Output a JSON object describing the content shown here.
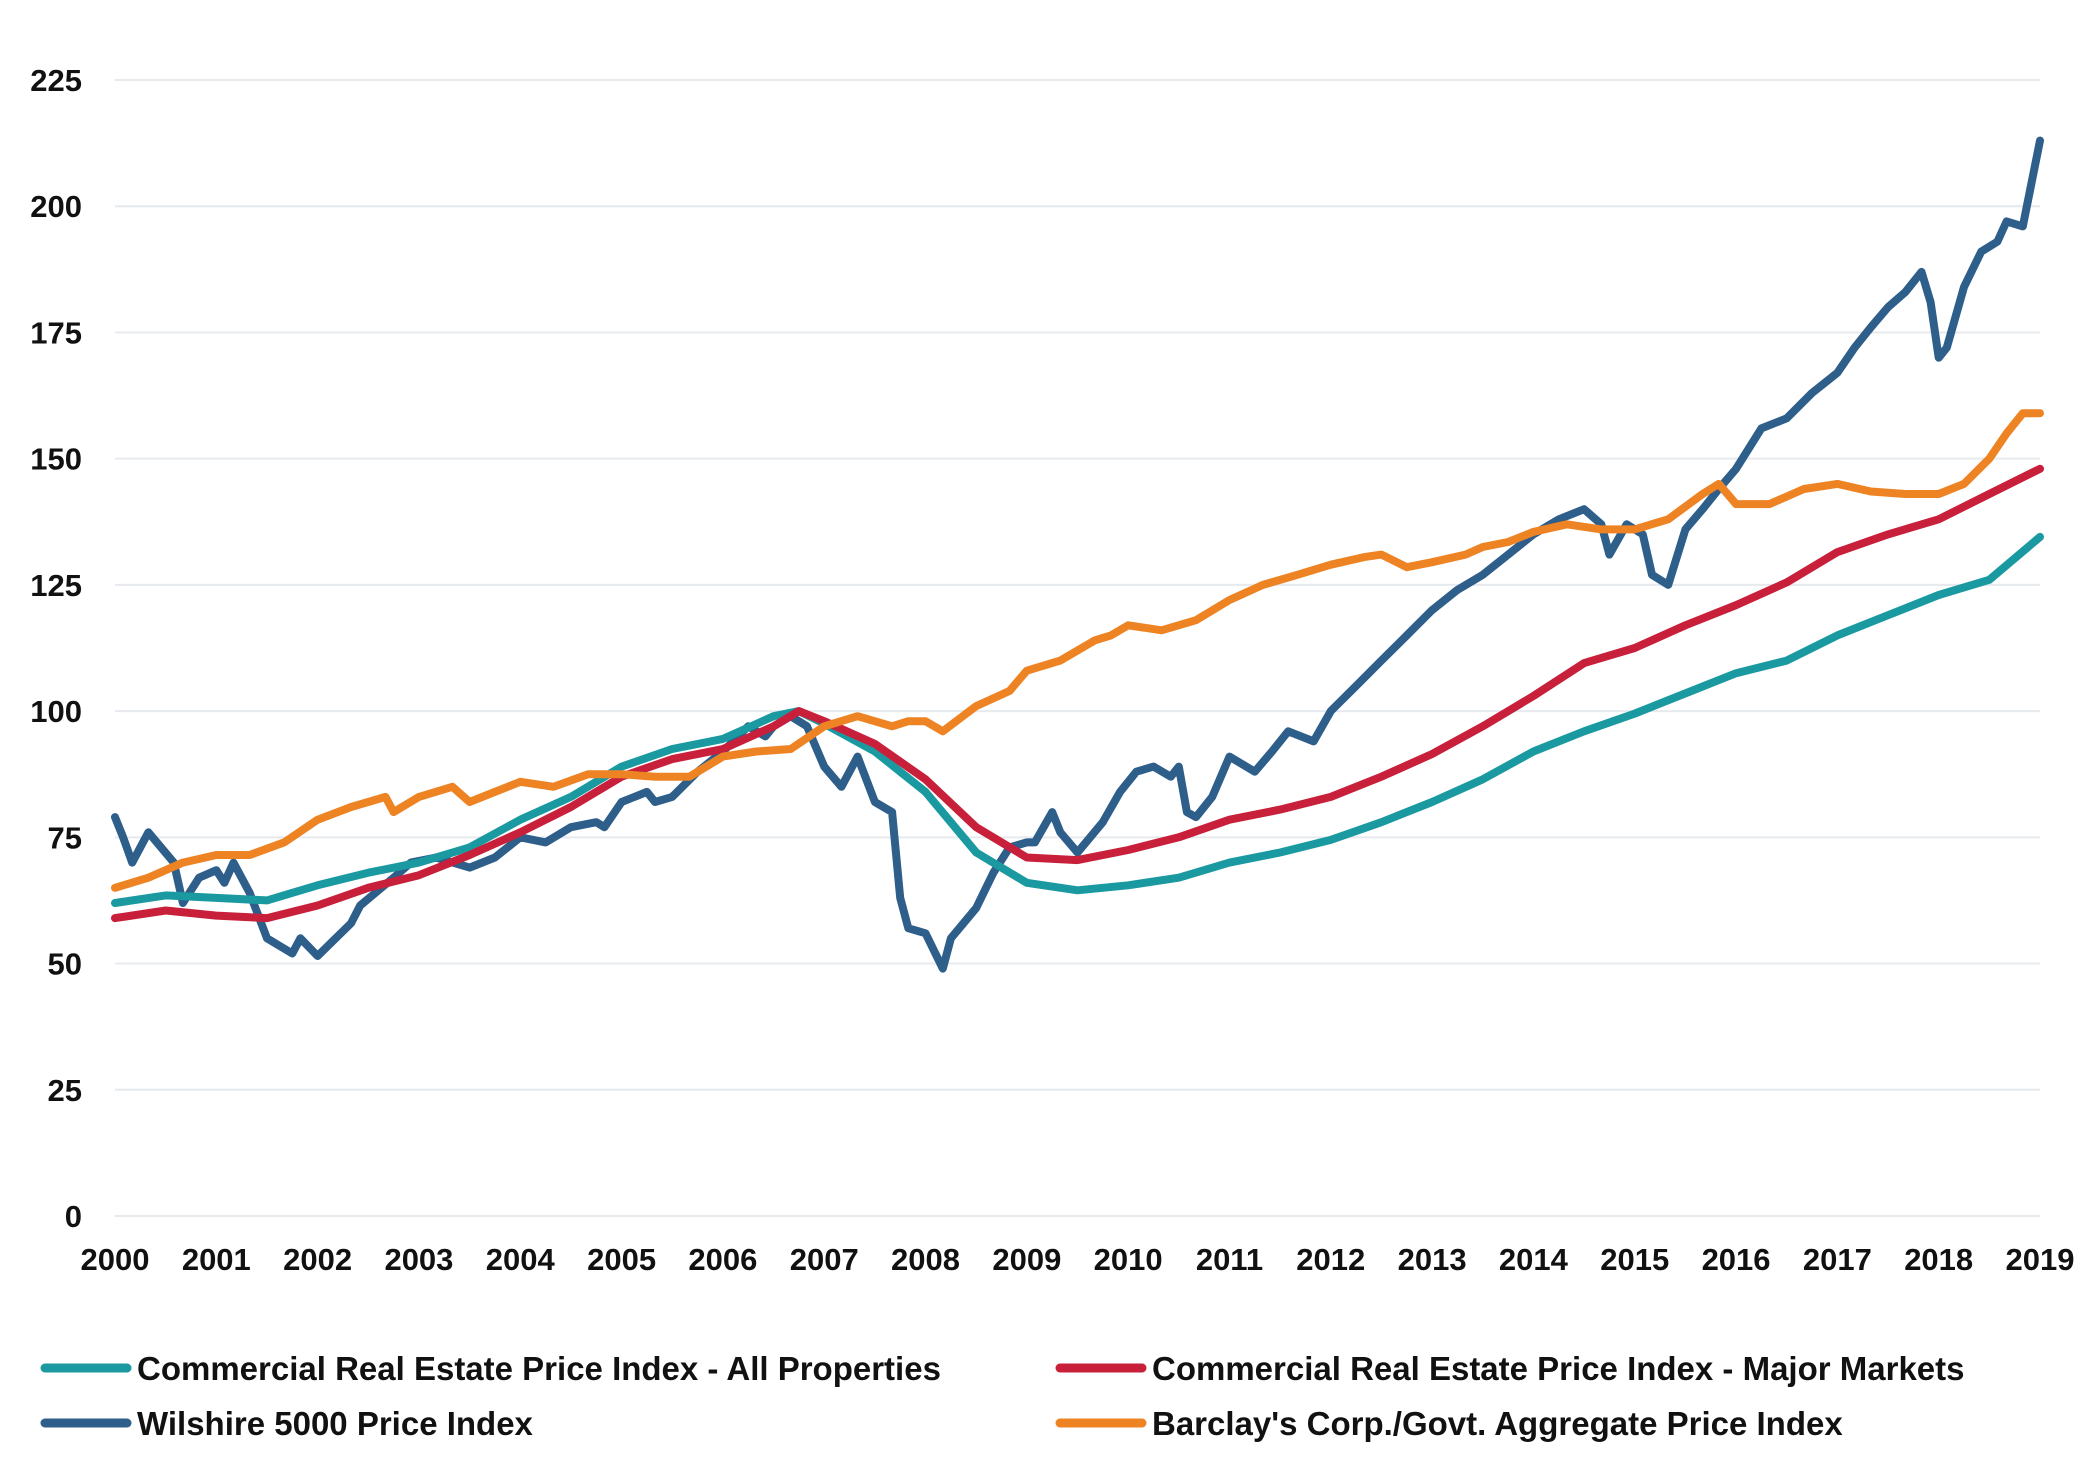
{
  "chart_data": {
    "type": "line",
    "title": "",
    "xlabel": "",
    "ylabel": "",
    "xlim": [
      2000,
      2019
    ],
    "ylim": [
      0,
      225
    ],
    "grid": true,
    "legend_position": "bottom",
    "y_ticks": [
      "0",
      "25",
      "50",
      "75",
      "100",
      "125",
      "150",
      "175",
      "200",
      "225"
    ],
    "x_ticks": [
      "2000",
      "2001",
      "2002",
      "2003",
      "2004",
      "2005",
      "2006",
      "2007",
      "2008",
      "2009",
      "2010",
      "2011",
      "2012",
      "2013",
      "2014",
      "2015",
      "2016",
      "2017",
      "2018",
      "2019"
    ],
    "series": [
      {
        "name": "Commercial Real Estate Price Index - All Properties",
        "color": "#1a9aa0",
        "x": [
          2000,
          2000.5,
          2001,
          2001.5,
          2002,
          2002.5,
          2003,
          2003.5,
          2004,
          2004.5,
          2005,
          2005.5,
          2006,
          2006.5,
          2006.75,
          2007,
          2007.5,
          2008,
          2008.5,
          2009,
          2009.5,
          2010,
          2010.5,
          2011,
          2011.5,
          2012,
          2012.5,
          2013,
          2013.5,
          2014,
          2014.5,
          2015,
          2015.5,
          2016,
          2016.5,
          2017,
          2017.5,
          2018,
          2018.5,
          2019
        ],
        "values": [
          62,
          63.5,
          63,
          62.5,
          65.5,
          68,
          70,
          73,
          78.5,
          83,
          89,
          92.5,
          94.5,
          99,
          100,
          97.5,
          92,
          84,
          72,
          66,
          64.5,
          65.5,
          67,
          70,
          72,
          74.5,
          78,
          82,
          86.5,
          92,
          96,
          99.5,
          103.5,
          107.5,
          110,
          115,
          119,
          123,
          126,
          134.5
        ]
      },
      {
        "name": "Commercial Real Estate Price Index - Major Markets",
        "color": "#c8203a",
        "x": [
          2000,
          2000.5,
          2001,
          2001.5,
          2002,
          2002.5,
          2003,
          2003.5,
          2004,
          2004.5,
          2005,
          2005.5,
          2006,
          2006.5,
          2006.75,
          2007,
          2007.5,
          2008,
          2008.5,
          2009,
          2009.5,
          2010,
          2010.5,
          2011,
          2011.5,
          2012,
          2012.5,
          2013,
          2013.5,
          2014,
          2014.5,
          2015,
          2015.5,
          2016,
          2016.5,
          2017,
          2017.5,
          2018,
          2018.5,
          2019
        ],
        "values": [
          59,
          60.5,
          59.5,
          59,
          61.5,
          65,
          67.5,
          71.5,
          76,
          81,
          87,
          90.5,
          92.5,
          97,
          100,
          98,
          93.5,
          86.5,
          77,
          71,
          70.5,
          72.5,
          75,
          78.5,
          80.5,
          83,
          87,
          91.5,
          97,
          103,
          109.5,
          112.5,
          117,
          121,
          125.5,
          131.5,
          135,
          138,
          143,
          148
        ]
      },
      {
        "name": "Wilshire 5000 Price Index",
        "color": "#2e5e8a",
        "x": [
          2000,
          2000.08,
          2000.17,
          2000.33,
          2000.58,
          2000.67,
          2000.83,
          2001,
          2001.08,
          2001.17,
          2001.33,
          2001.5,
          2001.75,
          2001.83,
          2002,
          2002.33,
          2002.42,
          2002.75,
          2002.92,
          2003.17,
          2003.5,
          2003.75,
          2004,
          2004.25,
          2004.5,
          2004.75,
          2004.83,
          2005,
          2005.25,
          2005.33,
          2005.5,
          2005.75,
          2006,
          2006.25,
          2006.42,
          2006.5,
          2006.67,
          2006.83,
          2007,
          2007.17,
          2007.33,
          2007.5,
          2007.67,
          2007.75,
          2007.83,
          2008,
          2008.17,
          2008.25,
          2008.5,
          2008.67,
          2008.83,
          2009,
          2009.08,
          2009.25,
          2009.33,
          2009.5,
          2009.75,
          2009.92,
          2010.08,
          2010.25,
          2010.42,
          2010.5,
          2010.58,
          2010.67,
          2010.83,
          2011,
          2011.25,
          2011.42,
          2011.58,
          2011.83,
          2012,
          2012.25,
          2012.5,
          2012.75,
          2013,
          2013.25,
          2013.5,
          2013.75,
          2014,
          2014.25,
          2014.5,
          2014.67,
          2014.75,
          2014.92,
          2015.08,
          2015.17,
          2015.33,
          2015.5,
          2015.67,
          2015.83,
          2016,
          2016.25,
          2016.5,
          2016.75,
          2017,
          2017.17,
          2017.33,
          2017.5,
          2017.67,
          2017.83,
          2017.92,
          2018,
          2018.08,
          2018.25,
          2018.42,
          2018.58,
          2018.67,
          2018.83,
          2019
        ],
        "values": [
          79,
          75,
          70,
          76,
          70,
          62,
          67,
          68.5,
          66,
          70,
          64,
          55,
          52,
          55,
          51.5,
          58,
          61.5,
          67,
          70,
          71,
          69,
          71,
          75,
          74,
          77,
          78,
          77,
          82,
          84,
          82,
          83,
          88,
          92,
          97,
          95,
          97,
          99,
          97,
          89,
          85,
          91,
          82,
          80,
          63,
          57,
          56,
          49,
          55,
          61,
          68,
          73,
          74,
          74,
          80,
          76,
          72,
          78,
          84,
          88,
          89,
          87,
          89,
          80,
          79,
          83,
          91,
          88,
          92,
          96,
          94,
          100,
          105,
          110,
          115,
          120,
          124,
          127,
          131,
          135,
          138,
          140,
          137,
          131,
          137,
          135,
          127,
          125,
          136,
          140,
          144,
          148,
          156,
          158,
          163,
          167,
          172,
          176,
          180,
          183,
          187,
          181,
          170,
          172,
          184,
          191,
          193,
          197,
          196,
          213
        ]
      },
      {
        "name": "Barclay's Corp./Govt. Aggregate Price Index",
        "color": "#ee8324",
        "x": [
          2000,
          2000.33,
          2000.67,
          2001,
          2001.33,
          2001.67,
          2002,
          2002.33,
          2002.67,
          2002.75,
          2003,
          2003.33,
          2003.5,
          2003.75,
          2004,
          2004.33,
          2004.67,
          2005,
          2005.33,
          2005.67,
          2006,
          2006.33,
          2006.67,
          2007,
          2007.33,
          2007.67,
          2007.83,
          2008,
          2008.17,
          2008.5,
          2008.83,
          2009,
          2009.33,
          2009.67,
          2009.83,
          2010,
          2010.33,
          2010.67,
          2011,
          2011.33,
          2011.67,
          2012,
          2012.33,
          2012.5,
          2012.75,
          2013,
          2013.33,
          2013.5,
          2013.75,
          2014,
          2014.33,
          2014.67,
          2015,
          2015.33,
          2015.67,
          2015.83,
          2016,
          2016.33,
          2016.67,
          2017,
          2017.33,
          2017.67,
          2018,
          2018.25,
          2018.5,
          2018.67,
          2018.83,
          2019
        ],
        "values": [
          65,
          67,
          70,
          71.5,
          71.5,
          74,
          78.5,
          81,
          83,
          80,
          83,
          85,
          82,
          84,
          86,
          85,
          87.5,
          87.5,
          87,
          87,
          91,
          92,
          92.5,
          97,
          99,
          97,
          98,
          98,
          96,
          101,
          104,
          108,
          110,
          114,
          115,
          117,
          116,
          118,
          122,
          125,
          127,
          129,
          130.5,
          131,
          128.5,
          129.5,
          131,
          132.5,
          133.5,
          135.5,
          137,
          136,
          136,
          138,
          143,
          145,
          141,
          141,
          144,
          145,
          143.5,
          143,
          143,
          145,
          150,
          155,
          159,
          159
        ]
      }
    ]
  }
}
